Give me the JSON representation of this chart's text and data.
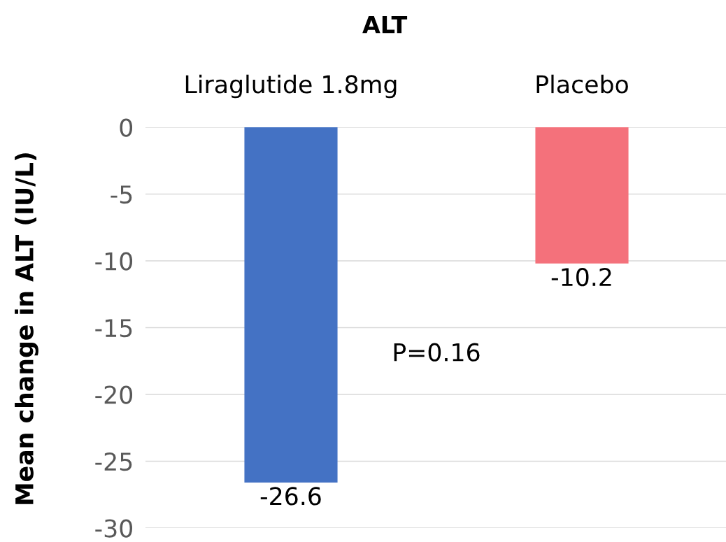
{
  "chart_data": {
    "type": "bar",
    "title": "ALT",
    "ylabel": "Mean change in ALT (IU/L)",
    "categories": [
      "Liraglutide 1.8mg",
      "Placebo"
    ],
    "values": [
      -26.6,
      -10.2
    ],
    "colors": [
      "#4472c4",
      "#f4717b"
    ],
    "ylim": [
      -30,
      0
    ],
    "yticks": [
      -30,
      -25,
      -20,
      -15,
      -10,
      -5,
      0
    ],
    "grid": "y",
    "data_labels": true,
    "annotations": [
      "P=0.16"
    ]
  }
}
